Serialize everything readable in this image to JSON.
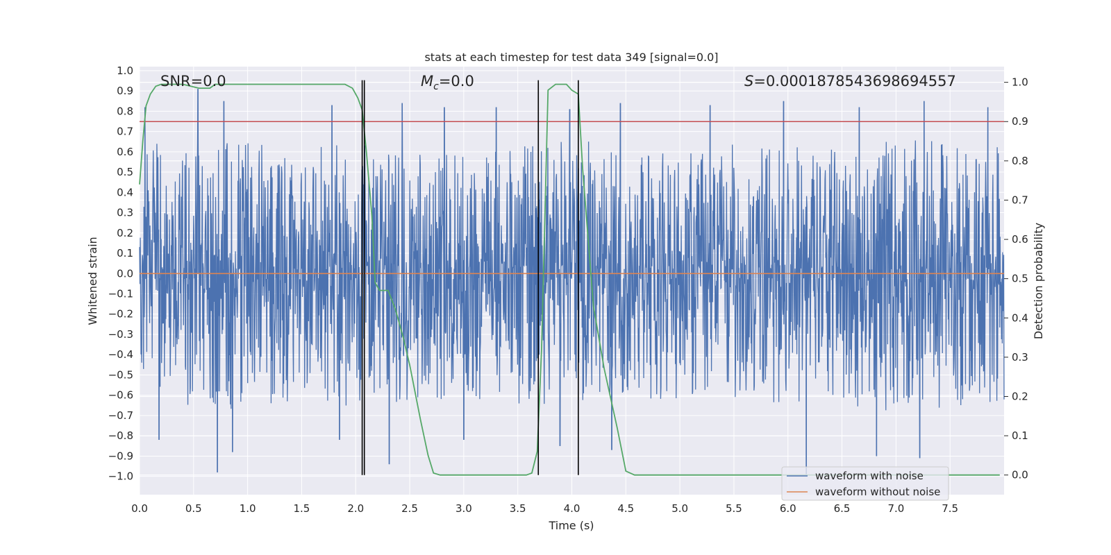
{
  "chart_data": {
    "type": "line",
    "title": "stats at each timestep for test data 349 [signal=0.0]",
    "xlabel": "Time (s)",
    "ylabel": "Whitened strain",
    "y2label": "Detection probability",
    "xlim": [
      0.0,
      8.0
    ],
    "ylim": [
      -1.09,
      1.02
    ],
    "y2lim": [
      -0.05,
      1.04
    ],
    "xticks": [
      "0.0",
      "0.5",
      "1.0",
      "1.5",
      "2.0",
      "2.5",
      "3.0",
      "3.5",
      "4.0",
      "4.5",
      "5.0",
      "5.5",
      "6.0",
      "6.5",
      "7.0",
      "7.5"
    ],
    "yticks": [
      "1.0",
      "0.9",
      "0.8",
      "0.7",
      "0.6",
      "0.5",
      "0.4",
      "0.3",
      "0.2",
      "0.1",
      "0.0",
      "−0.1",
      "−0.2",
      "−0.3",
      "−0.4",
      "−0.5",
      "−0.6",
      "−0.7",
      "−0.8",
      "−0.9",
      "−1.0"
    ],
    "y2ticks": [
      "1.0",
      "0.9",
      "0.8",
      "0.7",
      "0.6",
      "0.5",
      "0.4",
      "0.3",
      "0.2",
      "0.1",
      "0.0"
    ],
    "grid": true,
    "annotations": {
      "snr": "SNR=0.0",
      "mc_symbol": "M",
      "mc_sub": "c",
      "mc_value": "=0.0",
      "s_symbol": "S",
      "s_value": "=0.0001878543698694557"
    },
    "threshold_y2": 0.9,
    "threshold_color": "#c44e52",
    "vertical_lines_x": [
      2.06,
      2.08,
      3.69,
      4.06
    ],
    "legend": {
      "placement": "lower-right",
      "entries": [
        "waveform with noise",
        "waveform without noise"
      ]
    },
    "series": [
      {
        "name": "waveform with noise",
        "color": "#4c72b0",
        "description_range": [
          -0.98,
          0.91
        ],
        "envelope": {
          "x": [
            0.0,
            0.5,
            1.0,
            1.5,
            2.0,
            2.5,
            3.0,
            3.5,
            4.0,
            4.5,
            5.0,
            5.5,
            6.0,
            6.5,
            7.0,
            7.5,
            8.0
          ],
          "upper_typical": [
            0.62,
            0.65,
            0.63,
            0.6,
            0.62,
            0.58,
            0.56,
            0.6,
            0.66,
            0.58,
            0.58,
            0.62,
            0.63,
            0.6,
            0.64,
            0.63,
            0.6
          ],
          "lower_typical": [
            -0.62,
            -0.64,
            -0.66,
            -0.6,
            -0.66,
            -0.62,
            -0.6,
            -0.62,
            -0.66,
            -0.6,
            -0.6,
            -0.6,
            -0.62,
            -0.64,
            -0.66,
            -0.64,
            -0.62
          ]
        },
        "peaks": [
          {
            "x": 0.05,
            "y": 0.82
          },
          {
            "x": 0.54,
            "y": 0.91
          },
          {
            "x": 0.78,
            "y": 0.85
          },
          {
            "x": 1.78,
            "y": 0.83
          },
          {
            "x": 2.43,
            "y": 0.84
          },
          {
            "x": 2.82,
            "y": 0.82
          },
          {
            "x": 3.3,
            "y": 0.82
          },
          {
            "x": 3.98,
            "y": 0.81
          },
          {
            "x": 4.45,
            "y": 0.84
          },
          {
            "x": 5.28,
            "y": 0.83
          },
          {
            "x": 5.96,
            "y": 0.85
          },
          {
            "x": 6.66,
            "y": 0.82
          },
          {
            "x": 7.26,
            "y": 0.85
          },
          {
            "x": 7.85,
            "y": 0.82
          },
          {
            "x": 0.18,
            "y": -0.82
          },
          {
            "x": 0.72,
            "y": -0.98
          },
          {
            "x": 0.86,
            "y": -0.88
          },
          {
            "x": 2.31,
            "y": -0.94
          },
          {
            "x": 3.0,
            "y": -0.82
          },
          {
            "x": 3.89,
            "y": -0.85
          },
          {
            "x": 4.37,
            "y": -0.87
          },
          {
            "x": 6.17,
            "y": -0.99
          },
          {
            "x": 6.82,
            "y": -0.9
          },
          {
            "x": 7.22,
            "y": -0.91
          },
          {
            "x": 1.85,
            "y": -0.82
          }
        ]
      },
      {
        "name": "waveform without noise",
        "color": "#dd8452",
        "x": [
          0.0,
          8.0
        ],
        "y": [
          0.0,
          0.0
        ]
      },
      {
        "name": "detection probability",
        "color": "#55a868",
        "axis": "right",
        "x": [
          0.0,
          0.03,
          0.06,
          0.1,
          0.15,
          0.2,
          0.4,
          0.55,
          0.65,
          0.7,
          0.8,
          1.0,
          1.5,
          1.9,
          1.97,
          2.02,
          2.06,
          2.1,
          2.15,
          2.18,
          2.22,
          2.3,
          2.37,
          2.44,
          2.5,
          2.6,
          2.67,
          2.72,
          2.78,
          3.0,
          3.4,
          3.58,
          3.63,
          3.68,
          3.72,
          3.78,
          3.85,
          3.95,
          4.0,
          4.06,
          4.1,
          4.2,
          4.3,
          4.42,
          4.5,
          4.58,
          4.65,
          5.0,
          6.0,
          7.0,
          7.96
        ],
        "y": [
          0.74,
          0.85,
          0.94,
          0.97,
          0.99,
          0.995,
          0.995,
          0.985,
          0.985,
          0.995,
          0.995,
          0.995,
          0.995,
          0.995,
          0.985,
          0.96,
          0.93,
          0.82,
          0.66,
          0.49,
          0.47,
          0.47,
          0.42,
          0.35,
          0.28,
          0.14,
          0.05,
          0.005,
          0.0,
          0.0,
          0.0,
          0.0,
          0.005,
          0.06,
          0.32,
          0.98,
          0.995,
          0.995,
          0.98,
          0.97,
          0.78,
          0.43,
          0.27,
          0.12,
          0.01,
          0.0,
          0.0,
          0.0,
          0.0,
          0.0,
          0.0
        ]
      }
    ]
  }
}
